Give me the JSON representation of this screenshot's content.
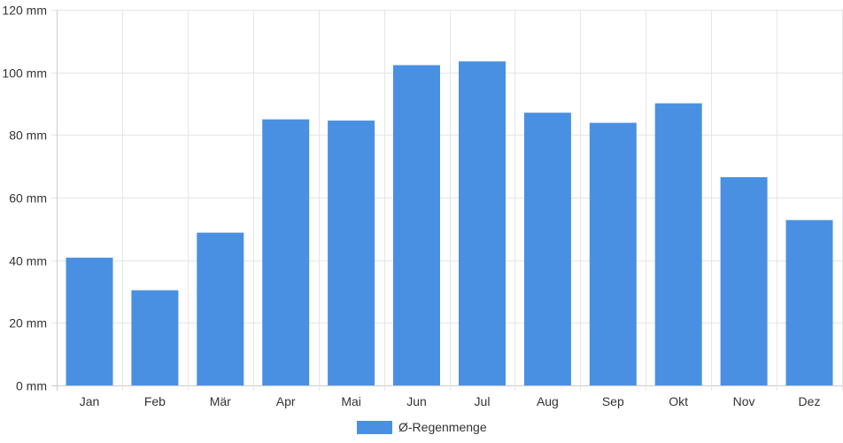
{
  "chart_data": {
    "type": "bar",
    "categories": [
      "Jan",
      "Feb",
      "Mär",
      "Apr",
      "Mai",
      "Jun",
      "Jul",
      "Aug",
      "Sep",
      "Okt",
      "Nov",
      "Dez"
    ],
    "series": [
      {
        "name": "Ø-Regenmenge",
        "values": [
          40.8,
          30.4,
          48.8,
          85.0,
          84.6,
          102.3,
          103.5,
          87.1,
          83.9,
          90.1,
          66.5,
          52.8
        ],
        "color": "#4a90e2"
      }
    ],
    "yticks": [
      {
        "value": 0,
        "label": "0 mm"
      },
      {
        "value": 20,
        "label": "20 mm"
      },
      {
        "value": 40,
        "label": "40 mm"
      },
      {
        "value": 60,
        "label": "60 mm"
      },
      {
        "value": 80,
        "label": "80 mm"
      },
      {
        "value": 100,
        "label": "100 mm"
      },
      {
        "value": 120,
        "label": "120 mm"
      }
    ],
    "ylim": [
      0,
      120
    ],
    "grid": true,
    "legend_position": "bottom",
    "title": "",
    "xlabel": "",
    "ylabel": "",
    "colors": {
      "grid": "#e6e6e6",
      "axis": "#cccccc",
      "text": "#333333"
    }
  }
}
